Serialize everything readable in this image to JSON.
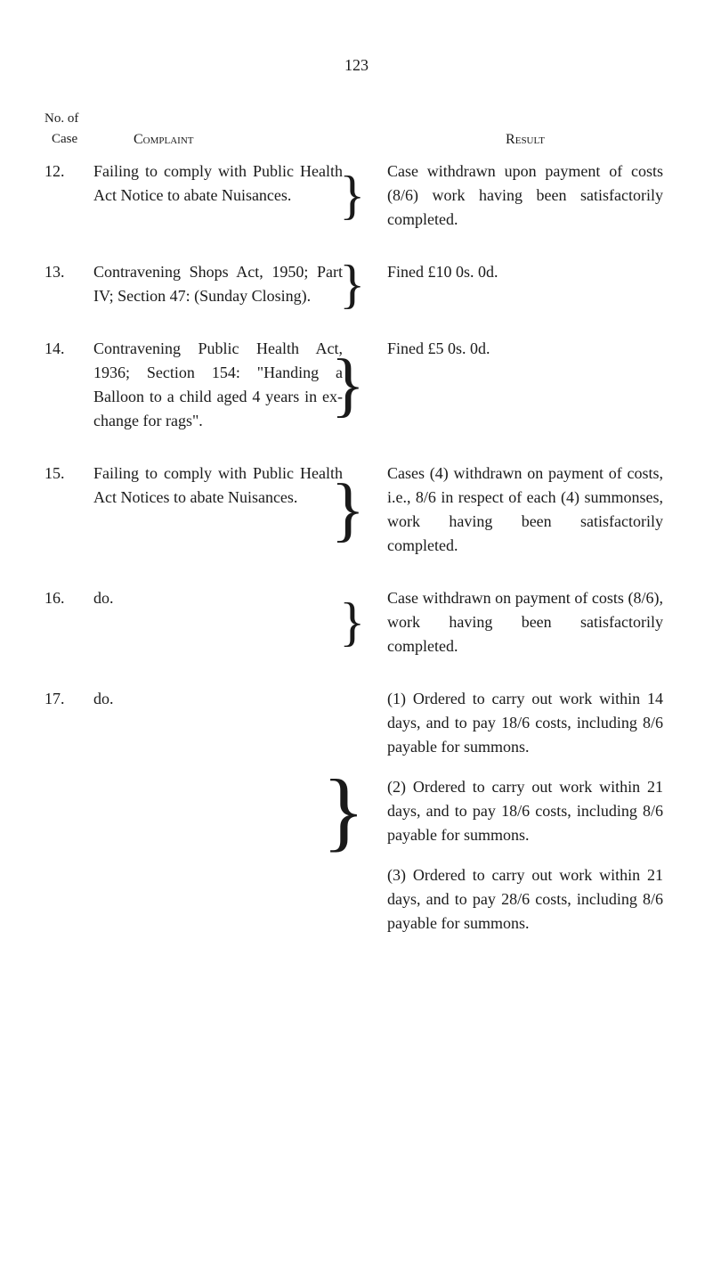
{
  "page_number": "123",
  "headers": {
    "no_of": "No. of",
    "case": "Case",
    "complaint": "Complaint",
    "result": "Result"
  },
  "entries": [
    {
      "number": "12.",
      "complaint": "Failing to comply with Public Health Act Notice to abate Nuisances.",
      "result": "Case withdrawn upon payment of costs (8/6) work having been satisfactorily completed."
    },
    {
      "number": "13.",
      "complaint": "Contravening Shops Act, 1950; Part IV; Section 47: (Sunday Closing).",
      "result": "Fined £10 0s. 0d."
    },
    {
      "number": "14.",
      "complaint": "Contravening Public Health Act, 1936; Section 154: \"Handing a Balloon to a child aged 4 years in ex­change for rags\".",
      "result": "Fined £5 0s. 0d."
    },
    {
      "number": "15.",
      "complaint": "Failing to comply with Public Health Act Notices to abate Nuisances.",
      "result": "Cases (4) withdrawn on pay­ment of costs, i.e., 8/6 in re­spect of each (4) summonses, work having been satisfactorily completed."
    },
    {
      "number": "16.",
      "complaint": "do.",
      "result": "Case withdrawn on payment of costs (8/6), work having been satisfactorily completed."
    },
    {
      "number": "17.",
      "complaint": "do.",
      "results": [
        "(1) Ordered to carry out work within 14 days, and to pay 18/6 costs, including 8/6 payable for summons.",
        "(2) Ordered to carry out work within 21 days, and to pay 18/6 costs, including 8/6 payable for summons.",
        "(3) Ordered to carry out work within 21 days, and to pay 28/6 costs, including 8/6 payable for summons."
      ]
    }
  ]
}
